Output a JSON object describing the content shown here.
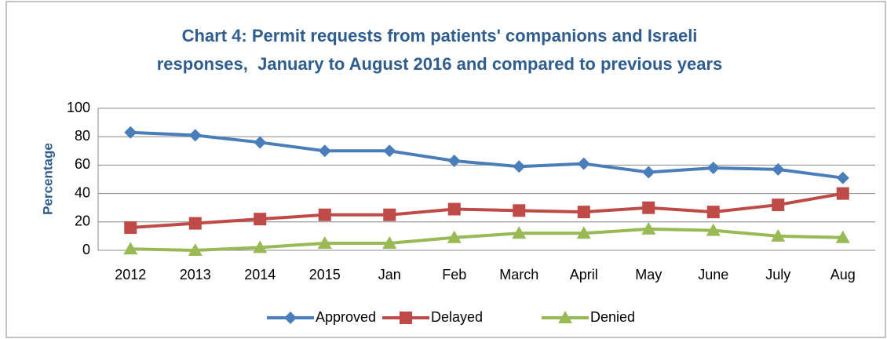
{
  "chart_data": {
    "type": "line",
    "title": [
      "Chart 4: Permit requests from patients' companions and Israeli",
      "responses,  January to August 2016 and compared to previous years"
    ],
    "y_label": "Percentage",
    "categories": [
      "2012",
      "2013",
      "2014",
      "2015",
      "Jan",
      "Feb",
      "March",
      "April",
      "May",
      "June",
      "July",
      "Aug"
    ],
    "series": [
      {
        "name": "Approved",
        "color": "#4a7ebb",
        "marker": "diamond",
        "values": [
          83,
          81,
          76,
          70,
          70,
          63,
          59,
          61,
          55,
          58,
          57,
          51
        ]
      },
      {
        "name": "Delayed",
        "color": "#be4b48",
        "marker": "square",
        "values": [
          16,
          19,
          22,
          25,
          25,
          29,
          28,
          27,
          30,
          27,
          32,
          40
        ]
      },
      {
        "name": "Denied",
        "color": "#98b954",
        "marker": "triangle",
        "values": [
          1,
          0,
          2,
          5,
          5,
          9,
          12,
          12,
          15,
          14,
          10,
          9
        ]
      }
    ],
    "ylim": [
      0,
      100
    ],
    "yticks": [
      0,
      20,
      40,
      60,
      80,
      100
    ],
    "grid": true,
    "legend": "bottom"
  }
}
